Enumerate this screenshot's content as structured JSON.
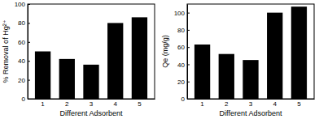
{
  "chart_data": [
    {
      "type": "bar",
      "x_label": "Different Adsorbent",
      "y_label": "% Removal of Hg²⁺",
      "categories": [
        "1",
        "2",
        "3",
        "4",
        "5"
      ],
      "values": [
        50,
        42,
        36,
        80,
        86
      ],
      "color": "#000000",
      "ylim": [
        0,
        100
      ],
      "yticks": [
        0,
        20,
        40,
        60,
        80,
        100
      ],
      "grid": false
    },
    {
      "type": "bar",
      "x_label": "Different Adsorbent",
      "y_label": "Qe (mg/g)",
      "categories": [
        "1",
        "2",
        "3",
        "4",
        "5"
      ],
      "values": [
        63,
        52,
        45,
        100,
        107
      ],
      "color": "#000000",
      "ylim": [
        0,
        110
      ],
      "yticks": [
        0,
        20,
        40,
        60,
        80,
        100
      ],
      "grid": false
    }
  ]
}
